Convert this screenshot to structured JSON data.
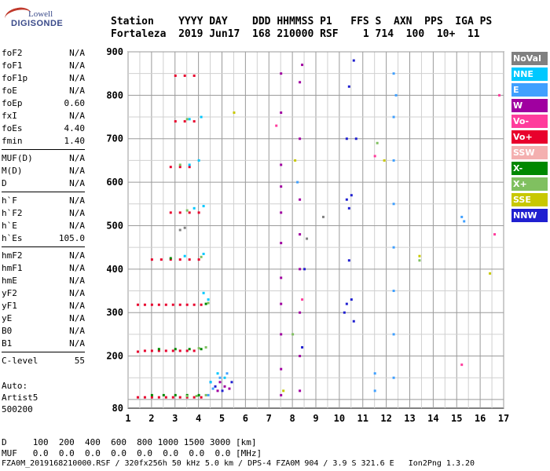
{
  "logo": {
    "line1": "Lowell",
    "line2": "DIGISONDE"
  },
  "header": {
    "labels": "Station    YYYY DAY    DDD HHMMSS P1   FFS S  AXN  PPS  IGA PS",
    "values": "Fortaleza  2019 Jun17  168 210000 RSF    1 714  100  10+  11"
  },
  "params": [
    {
      "key": "foF2",
      "value": "N/A"
    },
    {
      "key": "foF1",
      "value": "N/A"
    },
    {
      "key": "foF1p",
      "value": "N/A"
    },
    {
      "key": "foE",
      "value": "N/A"
    },
    {
      "key": "foEp",
      "value": "0.60"
    },
    {
      "key": "fxI",
      "value": "N/A"
    },
    {
      "key": "foEs",
      "value": "4.40"
    },
    {
      "key": "fmin",
      "value": "1.40"
    },
    {
      "key": "MUF(D)",
      "value": "N/A",
      "sep": true
    },
    {
      "key": "M(D)",
      "value": "N/A"
    },
    {
      "key": "D",
      "value": "N/A"
    },
    {
      "key": "h`F",
      "value": "N/A",
      "sep": true
    },
    {
      "key": "h`F2",
      "value": "N/A"
    },
    {
      "key": "h`E",
      "value": "N/A"
    },
    {
      "key": "h`Es",
      "value": "105.0"
    },
    {
      "key": "hmF2",
      "value": "N/A",
      "sep": true
    },
    {
      "key": "hmF1",
      "value": "N/A"
    },
    {
      "key": "hmE",
      "value": "N/A"
    },
    {
      "key": "yF2",
      "value": "N/A"
    },
    {
      "key": "yF1",
      "value": "N/A"
    },
    {
      "key": "yE",
      "value": "N/A"
    },
    {
      "key": "B0",
      "value": "N/A"
    },
    {
      "key": "B1",
      "value": "N/A"
    },
    {
      "key": "C-level",
      "value": "55",
      "sep": true
    }
  ],
  "auto": {
    "line1": "Auto:",
    "line2": "Artist5",
    "line3": "500200"
  },
  "legend": [
    {
      "label": "NoVal",
      "color": "#808080"
    },
    {
      "label": "NNE",
      "color": "#00c8ff"
    },
    {
      "label": "E",
      "color": "#40a0ff"
    },
    {
      "label": "W",
      "color": "#a000a0"
    },
    {
      "label": "Vo-",
      "color": "#ff3c9c"
    },
    {
      "label": "Vo+",
      "color": "#e8002c"
    },
    {
      "label": "SSW",
      "color": "#f4b0b0"
    },
    {
      "label": "X-",
      "color": "#008800"
    },
    {
      "label": "X+",
      "color": "#80c060"
    },
    {
      "label": "SSE",
      "color": "#c8c800"
    },
    {
      "label": "NNW",
      "color": "#2020d0"
    }
  ],
  "bottom": {
    "line1": "D     100  200  400  600  800 1000 1500 3000 [km]",
    "line2": "MUF   0.0  0.0  0.0  0.0  0.0  0.0  0.0  0.0 [MHz]"
  },
  "footer": "FZA0M_2019168210000.RSF / 320fx256h 50 kHz 5.0 km / DPS-4 FZA0M 904 / 3.9 S 321.6 E   Ion2Png 1.3.20",
  "chart_data": {
    "type": "scatter",
    "title": "",
    "xlabel": "",
    "ylabel": "",
    "xlim": [
      1,
      17
    ],
    "ylim": [
      80,
      900
    ],
    "x_ticks": [
      1,
      2,
      3,
      4,
      5,
      6,
      7,
      8,
      9,
      10,
      11,
      12,
      13,
      14,
      15,
      16,
      17
    ],
    "y_ticks": [
      80,
      200,
      300,
      400,
      500,
      600,
      700,
      800,
      900
    ],
    "grid": true,
    "x_unit": "MHz",
    "y_unit": "km",
    "traces": [
      {
        "name": "Vo+",
        "color": "#e8002c",
        "points": [
          [
            1.4,
            105
          ],
          [
            1.7,
            105
          ],
          [
            2.0,
            105
          ],
          [
            2.3,
            105
          ],
          [
            2.6,
            105
          ],
          [
            2.9,
            105
          ],
          [
            3.2,
            105
          ],
          [
            3.5,
            105
          ],
          [
            3.8,
            105
          ],
          [
            4.1,
            105
          ],
          [
            1.4,
            210
          ],
          [
            1.7,
            212
          ],
          [
            2.0,
            212
          ],
          [
            2.3,
            212
          ],
          [
            2.6,
            212
          ],
          [
            2.9,
            212
          ],
          [
            3.2,
            212
          ],
          [
            3.5,
            212
          ],
          [
            3.8,
            212
          ],
          [
            1.4,
            318
          ],
          [
            1.7,
            318
          ],
          [
            2.0,
            318
          ],
          [
            2.3,
            318
          ],
          [
            2.6,
            318
          ],
          [
            2.9,
            318
          ],
          [
            3.2,
            318
          ],
          [
            3.5,
            318
          ],
          [
            3.8,
            318
          ],
          [
            4.1,
            318
          ],
          [
            2.0,
            422
          ],
          [
            2.4,
            422
          ],
          [
            2.8,
            422
          ],
          [
            3.2,
            422
          ],
          [
            3.6,
            422
          ],
          [
            4.0,
            422
          ],
          [
            2.8,
            530
          ],
          [
            3.2,
            530
          ],
          [
            3.6,
            530
          ],
          [
            4.0,
            530
          ],
          [
            2.8,
            635
          ],
          [
            3.2,
            635
          ],
          [
            3.6,
            635
          ],
          [
            3.0,
            740
          ],
          [
            3.4,
            740
          ],
          [
            3.8,
            740
          ],
          [
            3.0,
            845
          ],
          [
            3.4,
            845
          ],
          [
            3.8,
            845
          ]
        ]
      },
      {
        "name": "W",
        "color": "#a000a0",
        "points": [
          [
            7.5,
            110
          ],
          [
            7.5,
            170
          ],
          [
            7.5,
            250
          ],
          [
            7.5,
            320
          ],
          [
            7.5,
            380
          ],
          [
            7.5,
            460
          ],
          [
            7.5,
            530
          ],
          [
            7.5,
            590
          ],
          [
            7.5,
            640
          ],
          [
            7.5,
            760
          ],
          [
            7.5,
            850
          ],
          [
            8.3,
            120
          ],
          [
            8.3,
            200
          ],
          [
            8.3,
            300
          ],
          [
            8.3,
            400
          ],
          [
            8.3,
            480
          ],
          [
            8.3,
            560
          ],
          [
            8.3,
            700
          ],
          [
            8.3,
            830
          ],
          [
            8.4,
            870
          ],
          [
            4.8,
            120
          ],
          [
            4.9,
            140
          ],
          [
            5.1,
            130
          ],
          [
            5.3,
            125
          ]
        ]
      },
      {
        "name": "NNW",
        "color": "#2020d0",
        "points": [
          [
            10.3,
            560
          ],
          [
            10.4,
            540
          ],
          [
            10.5,
            570
          ],
          [
            10.2,
            300
          ],
          [
            10.3,
            320
          ],
          [
            10.5,
            330
          ],
          [
            10.6,
            280
          ],
          [
            10.4,
            820
          ],
          [
            10.6,
            880
          ],
          [
            10.3,
            700
          ],
          [
            10.7,
            700
          ],
          [
            10.4,
            420
          ],
          [
            4.5,
            140
          ],
          [
            4.7,
            130
          ],
          [
            5.0,
            120
          ],
          [
            5.4,
            140
          ],
          [
            8.4,
            220
          ],
          [
            8.5,
            400
          ]
        ]
      },
      {
        "name": "E",
        "color": "#40a0ff",
        "points": [
          [
            12.3,
            150
          ],
          [
            12.3,
            250
          ],
          [
            12.3,
            350
          ],
          [
            12.3,
            450
          ],
          [
            12.3,
            550
          ],
          [
            12.3,
            650
          ],
          [
            12.3,
            750
          ],
          [
            12.3,
            850
          ],
          [
            12.4,
            800
          ],
          [
            11.5,
            120
          ],
          [
            11.5,
            160
          ],
          [
            4.4,
            110
          ],
          [
            4.6,
            125
          ],
          [
            4.9,
            150
          ],
          [
            5.2,
            160
          ],
          [
            8.2,
            600
          ],
          [
            15.2,
            520
          ],
          [
            15.3,
            510
          ]
        ]
      },
      {
        "name": "NNE",
        "color": "#00c8ff",
        "points": [
          [
            4.5,
            140
          ],
          [
            4.8,
            160
          ],
          [
            5.1,
            150
          ],
          [
            4.4,
            330
          ],
          [
            4.2,
            345
          ],
          [
            3.8,
            540
          ],
          [
            4.2,
            545
          ],
          [
            3.6,
            640
          ],
          [
            4.0,
            650
          ],
          [
            3.6,
            745
          ],
          [
            4.1,
            750
          ],
          [
            3.4,
            430
          ],
          [
            4.2,
            435
          ]
        ]
      },
      {
        "name": "X-",
        "color": "#008800",
        "points": [
          [
            2.0,
            110
          ],
          [
            2.5,
            110
          ],
          [
            3.0,
            110
          ],
          [
            3.5,
            110
          ],
          [
            4.0,
            110
          ],
          [
            2.3,
            216
          ],
          [
            3.0,
            216
          ],
          [
            3.6,
            216
          ],
          [
            4.1,
            216
          ],
          [
            4.3,
            320
          ],
          [
            2.8,
            425
          ]
        ]
      },
      {
        "name": "X+",
        "color": "#80c060",
        "points": [
          [
            3.5,
            108
          ],
          [
            3.9,
            108
          ],
          [
            4.3,
            110
          ],
          [
            4.0,
            218
          ],
          [
            4.3,
            220
          ],
          [
            4.4,
            322
          ],
          [
            4.1,
            428
          ],
          [
            3.5,
            535
          ],
          [
            3.2,
            640
          ],
          [
            3.5,
            745
          ],
          [
            8.0,
            250
          ],
          [
            11.6,
            690
          ],
          [
            13.4,
            420
          ]
        ]
      },
      {
        "name": "Vo-",
        "color": "#ff3c9c",
        "points": [
          [
            7.3,
            730
          ],
          [
            8.4,
            330
          ],
          [
            11.5,
            660
          ],
          [
            15.2,
            180
          ],
          [
            16.6,
            480
          ],
          [
            16.8,
            800
          ]
        ]
      },
      {
        "name": "SSE",
        "color": "#c8c800",
        "points": [
          [
            5.5,
            760
          ],
          [
            7.6,
            120
          ],
          [
            8.1,
            650
          ],
          [
            11.9,
            650
          ],
          [
            13.4,
            430
          ],
          [
            16.4,
            390
          ]
        ]
      },
      {
        "name": "NoVal",
        "color": "#808080",
        "points": [
          [
            3.2,
            490
          ],
          [
            3.4,
            495
          ],
          [
            8.6,
            470
          ],
          [
            9.3,
            520
          ]
        ]
      }
    ]
  }
}
